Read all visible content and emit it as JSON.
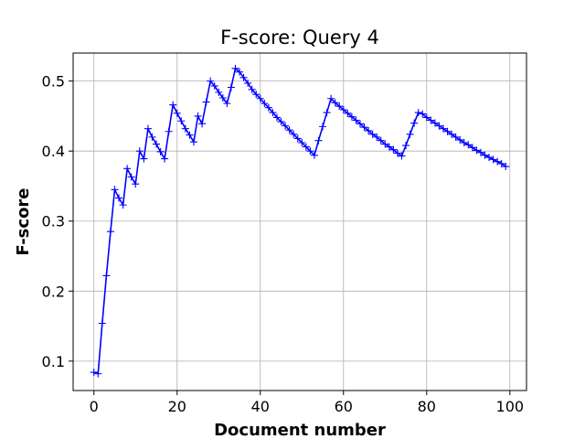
{
  "chart_data": {
    "type": "line",
    "title": "F-score: Query 4",
    "xlabel": "Document number",
    "ylabel": "F-score",
    "xlim": [
      -5,
      104
    ],
    "ylim": [
      0.058,
      0.54
    ],
    "xticks": [
      0,
      20,
      40,
      60,
      80,
      100
    ],
    "yticks": [
      0.1,
      0.2,
      0.3,
      0.4,
      0.5
    ],
    "xtick_labels": [
      "0",
      "20",
      "40",
      "60",
      "80",
      "100"
    ],
    "ytick_labels": [
      "0.1",
      "0.2",
      "0.3",
      "0.4",
      "0.5"
    ],
    "grid": true,
    "marker": "+",
    "color": "#0000ff",
    "series": [
      {
        "x": [
          0,
          1,
          2,
          3,
          4,
          5,
          6,
          7,
          8,
          9,
          10,
          11,
          12,
          13,
          14,
          15,
          16,
          17,
          18,
          19,
          20,
          21,
          22,
          23,
          24,
          25,
          26,
          27,
          28,
          29,
          30,
          31,
          32,
          33,
          34,
          35,
          36,
          37,
          38,
          39,
          40,
          41,
          42,
          43,
          44,
          45,
          46,
          47,
          48,
          49,
          50,
          51,
          52,
          53,
          54,
          55,
          56,
          57,
          58,
          59,
          60,
          61,
          62,
          63,
          64,
          65,
          66,
          67,
          68,
          69,
          70,
          71,
          72,
          73,
          74,
          75,
          76,
          77,
          78,
          79,
          80,
          81,
          82,
          83,
          84,
          85,
          86,
          87,
          88,
          89,
          90,
          91,
          92,
          93,
          94,
          95,
          96,
          97,
          98,
          99
        ],
        "values": [
          0.084,
          0.082,
          0.154,
          0.222,
          0.285,
          0.345,
          0.333,
          0.323,
          0.375,
          0.363,
          0.353,
          0.4,
          0.389,
          0.432,
          0.42,
          0.41,
          0.399,
          0.389,
          0.428,
          0.466,
          0.454,
          0.443,
          0.432,
          0.423,
          0.413,
          0.45,
          0.439,
          0.47,
          0.5,
          0.493,
          0.484,
          0.476,
          0.468,
          0.491,
          0.518,
          0.513,
          0.505,
          0.497,
          0.488,
          0.481,
          0.475,
          0.468,
          0.462,
          0.455,
          0.448,
          0.442,
          0.436,
          0.43,
          0.424,
          0.418,
          0.412,
          0.406,
          0.4,
          0.394,
          0.415,
          0.435,
          0.455,
          0.475,
          0.469,
          0.464,
          0.459,
          0.454,
          0.449,
          0.444,
          0.439,
          0.434,
          0.429,
          0.424,
          0.42,
          0.415,
          0.41,
          0.406,
          0.402,
          0.397,
          0.393,
          0.408,
          0.424,
          0.44,
          0.455,
          0.453,
          0.448,
          0.444,
          0.44,
          0.436,
          0.432,
          0.428,
          0.424,
          0.42,
          0.416,
          0.412,
          0.409,
          0.405,
          0.401,
          0.398,
          0.394,
          0.391,
          0.388,
          0.385,
          0.382,
          0.378
        ]
      }
    ]
  }
}
